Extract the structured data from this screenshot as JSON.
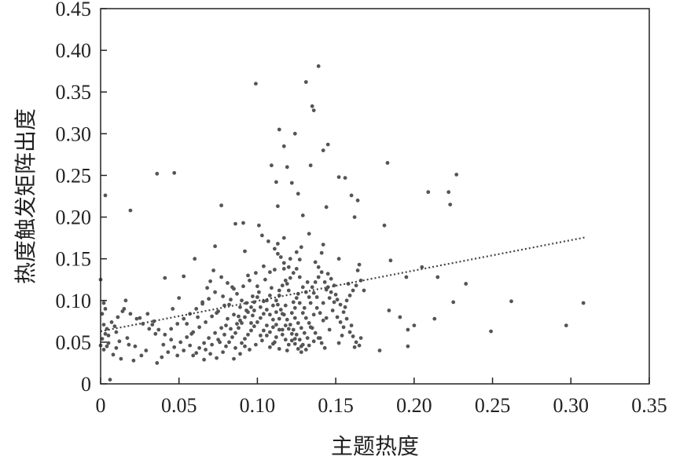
{
  "chart_data": {
    "type": "scatter",
    "title": "",
    "xlabel": "主题热度",
    "ylabel": "热度触发矩阵出度",
    "xlim": [
      0,
      0.35
    ],
    "ylim": [
      0,
      0.45
    ],
    "x_ticks": [
      "0",
      "0.05",
      "0.10",
      "0.15",
      "0.20",
      "0.25",
      "0.30",
      "0.35"
    ],
    "y_ticks": [
      "0",
      "0.05",
      "0.10",
      "0.15",
      "0.20",
      "0.25",
      "0.30",
      "0.35",
      "0.40",
      "0.45"
    ],
    "grid": false,
    "legend": "none",
    "point_color": "#555555",
    "trendline": {
      "style": "dotted",
      "x": [
        0,
        0.31
      ],
      "y": [
        0.063,
        0.176
      ]
    },
    "points": [
      [
        0.139,
        0.381
      ],
      [
        0.099,
        0.36
      ],
      [
        0.131,
        0.362
      ],
      [
        0.135,
        0.333
      ],
      [
        0.136,
        0.328
      ],
      [
        0.114,
        0.305
      ],
      [
        0.124,
        0.3
      ],
      [
        0.117,
        0.285
      ],
      [
        0.142,
        0.28
      ],
      [
        0.145,
        0.287
      ],
      [
        0.109,
        0.262
      ],
      [
        0.119,
        0.26
      ],
      [
        0.134,
        0.262
      ],
      [
        0.112,
        0.242
      ],
      [
        0.122,
        0.241
      ],
      [
        0.126,
        0.228
      ],
      [
        0.152,
        0.248
      ],
      [
        0.156,
        0.247
      ],
      [
        0.16,
        0.226
      ],
      [
        0.164,
        0.22
      ],
      [
        0.183,
        0.265
      ],
      [
        0.227,
        0.251
      ],
      [
        0.209,
        0.23
      ],
      [
        0.222,
        0.23
      ],
      [
        0.223,
        0.215
      ],
      [
        0.036,
        0.252
      ],
      [
        0.047,
        0.253
      ],
      [
        0.003,
        0.226
      ],
      [
        0.019,
        0.208
      ],
      [
        0.077,
        0.214
      ],
      [
        0.086,
        0.192
      ],
      [
        0.091,
        0.193
      ],
      [
        0.101,
        0.19
      ],
      [
        0.113,
        0.213
      ],
      [
        0.129,
        0.202
      ],
      [
        0.144,
        0.212
      ],
      [
        0.162,
        0.2
      ],
      [
        0.181,
        0.19
      ],
      [
        0.103,
        0.178
      ],
      [
        0.117,
        0.175
      ],
      [
        0.133,
        0.18
      ],
      [
        0.142,
        0.167
      ],
      [
        0.128,
        0.164
      ],
      [
        0.073,
        0.165
      ],
      [
        0.092,
        0.159
      ],
      [
        0.113,
        0.156
      ],
      [
        0.141,
        0.157
      ],
      [
        0.152,
        0.15
      ],
      [
        0.165,
        0.143
      ],
      [
        0.06,
        0.15
      ],
      [
        0.185,
        0.148
      ],
      [
        0.205,
        0.14
      ],
      [
        0.215,
        0.128
      ],
      [
        0.195,
        0.128
      ],
      [
        0.233,
        0.12
      ],
      [
        0.184,
        0.088
      ],
      [
        0.191,
        0.08
      ],
      [
        0.196,
        0.065
      ],
      [
        0.2,
        0.07
      ],
      [
        0.213,
        0.078
      ],
      [
        0.225,
        0.098
      ],
      [
        0.249,
        0.063
      ],
      [
        0.262,
        0.099
      ],
      [
        0.297,
        0.07
      ],
      [
        0.308,
        0.097
      ],
      [
        0.178,
        0.04
      ],
      [
        0.196,
        0.045
      ],
      [
        0.0,
        0.125
      ],
      [
        0.002,
        0.097
      ],
      [
        0.004,
        0.066
      ],
      [
        0.005,
        0.058
      ],
      [
        0.007,
        0.074
      ],
      [
        0.01,
        0.062
      ],
      [
        0.012,
        0.051
      ],
      [
        0.014,
        0.087
      ],
      [
        0.016,
        0.1
      ],
      [
        0.002,
        0.041
      ],
      [
        0.004,
        0.045
      ],
      [
        0.006,
        0.005
      ],
      [
        0.013,
        0.03
      ],
      [
        0.017,
        0.055
      ],
      [
        0.022,
        0.045
      ],
      [
        0.025,
        0.079
      ],
      [
        0.03,
        0.084
      ],
      [
        0.034,
        0.075
      ],
      [
        0.036,
        0.025
      ],
      [
        0.04,
        0.047
      ],
      [
        0.041,
        0.127
      ],
      [
        0.046,
        0.09
      ],
      [
        0.05,
        0.103
      ],
      [
        0.053,
        0.129
      ],
      [
        0.055,
        0.072
      ],
      [
        0.058,
        0.06
      ],
      [
        0.059,
        0.034
      ],
      [
        0.062,
        0.08
      ],
      [
        0.065,
        0.098
      ],
      [
        0.068,
        0.115
      ],
      [
        0.07,
        0.123
      ],
      [
        0.072,
        0.136
      ],
      [
        0.074,
        0.085
      ],
      [
        0.076,
        0.05
      ],
      [
        0.078,
        0.105
      ],
      [
        0.08,
        0.07
      ],
      [
        0.082,
        0.095
      ],
      [
        0.084,
        0.116
      ],
      [
        0.086,
        0.061
      ],
      [
        0.088,
        0.081
      ],
      [
        0.09,
        0.1
      ],
      [
        0.092,
        0.045
      ],
      [
        0.094,
        0.13
      ],
      [
        0.096,
        0.073
      ],
      [
        0.098,
        0.088
      ],
      [
        0.1,
        0.117
      ],
      [
        0.102,
        0.058
      ],
      [
        0.104,
        0.099
      ],
      [
        0.106,
        0.07
      ],
      [
        0.108,
        0.134
      ],
      [
        0.11,
        0.048
      ],
      [
        0.112,
        0.086
      ],
      [
        0.114,
        0.112
      ],
      [
        0.116,
        0.065
      ],
      [
        0.118,
        0.094
      ],
      [
        0.12,
        0.14
      ],
      [
        0.122,
        0.052
      ],
      [
        0.124,
        0.079
      ],
      [
        0.126,
        0.108
      ],
      [
        0.128,
        0.045
      ],
      [
        0.13,
        0.091
      ],
      [
        0.132,
        0.122
      ],
      [
        0.134,
        0.068
      ],
      [
        0.136,
        0.083
      ],
      [
        0.138,
        0.104
      ],
      [
        0.14,
        0.055
      ],
      [
        0.142,
        0.076
      ],
      [
        0.144,
        0.113
      ],
      [
        0.146,
        0.065
      ],
      [
        0.148,
        0.088
      ],
      [
        0.15,
        0.107
      ],
      [
        0.152,
        0.049
      ],
      [
        0.154,
        0.058
      ],
      [
        0.156,
        0.092
      ],
      [
        0.158,
        0.12
      ],
      [
        0.16,
        0.07
      ],
      [
        0.162,
        0.044
      ],
      [
        0.164,
        0.136
      ],
      [
        0.166,
        0.055
      ],
      [
        0.168,
        0.112
      ],
      [
        0.115,
        0.152
      ],
      [
        0.117,
        0.145
      ],
      [
        0.111,
        0.137
      ],
      [
        0.121,
        0.127
      ],
      [
        0.119,
        0.12
      ],
      [
        0.109,
        0.115
      ],
      [
        0.105,
        0.125
      ],
      [
        0.101,
        0.11
      ],
      [
        0.097,
        0.105
      ],
      [
        0.093,
        0.097
      ],
      [
        0.089,
        0.092
      ],
      [
        0.085,
        0.083
      ],
      [
        0.081,
        0.078
      ],
      [
        0.077,
        0.067
      ],
      [
        0.073,
        0.061
      ],
      [
        0.069,
        0.055
      ],
      [
        0.066,
        0.049
      ],
      [
        0.063,
        0.043
      ],
      [
        0.113,
        0.095
      ],
      [
        0.115,
        0.089
      ],
      [
        0.117,
        0.083
      ],
      [
        0.119,
        0.077
      ],
      [
        0.121,
        0.071
      ],
      [
        0.123,
        0.065
      ],
      [
        0.125,
        0.059
      ],
      [
        0.127,
        0.053
      ],
      [
        0.129,
        0.047
      ],
      [
        0.131,
        0.041
      ],
      [
        0.108,
        0.083
      ],
      [
        0.11,
        0.077
      ],
      [
        0.112,
        0.071
      ],
      [
        0.114,
        0.065
      ],
      [
        0.116,
        0.059
      ],
      [
        0.118,
        0.053
      ],
      [
        0.12,
        0.047
      ],
      [
        0.106,
        0.089
      ],
      [
        0.104,
        0.084
      ],
      [
        0.102,
        0.079
      ],
      [
        0.1,
        0.074
      ],
      [
        0.098,
        0.069
      ],
      [
        0.096,
        0.064
      ],
      [
        0.094,
        0.059
      ],
      [
        0.092,
        0.054
      ],
      [
        0.09,
        0.049
      ],
      [
        0.123,
        0.098
      ],
      [
        0.125,
        0.103
      ],
      [
        0.127,
        0.097
      ],
      [
        0.129,
        0.085
      ],
      [
        0.131,
        0.079
      ],
      [
        0.133,
        0.073
      ],
      [
        0.135,
        0.067
      ],
      [
        0.137,
        0.061
      ],
      [
        0.139,
        0.055
      ],
      [
        0.141,
        0.049
      ],
      [
        0.143,
        0.043
      ],
      [
        0.087,
        0.072
      ],
      [
        0.083,
        0.066
      ],
      [
        0.079,
        0.059
      ],
      [
        0.075,
        0.053
      ],
      [
        0.071,
        0.047
      ],
      [
        0.067,
        0.041
      ],
      [
        0.104,
        0.141
      ],
      [
        0.099,
        0.133
      ],
      [
        0.095,
        0.124
      ],
      [
        0.091,
        0.117
      ],
      [
        0.087,
        0.108
      ],
      [
        0.083,
        0.101
      ],
      [
        0.079,
        0.094
      ],
      [
        0.075,
        0.087
      ],
      [
        0.071,
        0.081
      ],
      [
        0.067,
        0.074
      ],
      [
        0.063,
        0.068
      ],
      [
        0.059,
        0.062
      ],
      [
        0.055,
        0.056
      ],
      [
        0.051,
        0.05
      ],
      [
        0.047,
        0.044
      ],
      [
        0.043,
        0.038
      ],
      [
        0.039,
        0.032
      ],
      [
        0.035,
        0.06
      ],
      [
        0.031,
        0.066
      ],
      [
        0.027,
        0.072
      ],
      [
        0.023,
        0.078
      ],
      [
        0.019,
        0.084
      ],
      [
        0.015,
        0.09
      ],
      [
        0.111,
        0.162
      ],
      [
        0.113,
        0.168
      ],
      [
        0.107,
        0.171
      ],
      [
        0.125,
        0.158
      ],
      [
        0.127,
        0.149
      ],
      [
        0.137,
        0.146
      ],
      [
        0.139,
        0.14
      ],
      [
        0.145,
        0.132
      ],
      [
        0.147,
        0.126
      ],
      [
        0.149,
        0.118
      ],
      [
        0.151,
        0.101
      ],
      [
        0.153,
        0.095
      ],
      [
        0.155,
        0.086
      ],
      [
        0.157,
        0.078
      ],
      [
        0.159,
        0.062
      ],
      [
        0.161,
        0.057
      ],
      [
        0.163,
        0.05
      ],
      [
        0.165,
        0.046
      ],
      [
        0.108,
        0.044
      ],
      [
        0.111,
        0.05
      ],
      [
        0.114,
        0.042
      ],
      [
        0.119,
        0.04
      ],
      [
        0.124,
        0.048
      ],
      [
        0.128,
        0.038
      ],
      [
        0.133,
        0.046
      ],
      [
        0.136,
        0.051
      ],
      [
        0.103,
        0.052
      ],
      [
        0.099,
        0.047
      ],
      [
        0.095,
        0.041
      ],
      [
        0.089,
        0.036
      ],
      [
        0.085,
        0.03
      ],
      [
        0.08,
        0.045
      ],
      [
        0.078,
        0.038
      ],
      [
        0.074,
        0.031
      ],
      [
        0.07,
        0.036
      ],
      [
        0.066,
        0.029
      ],
      [
        0.061,
        0.037
      ],
      [
        0.057,
        0.046
      ],
      [
        0.053,
        0.04
      ],
      [
        0.049,
        0.034
      ],
      [
        0.045,
        0.053
      ],
      [
        0.041,
        0.059
      ],
      [
        0.037,
        0.065
      ],
      [
        0.033,
        0.071
      ],
      [
        0.029,
        0.04
      ],
      [
        0.026,
        0.034
      ],
      [
        0.021,
        0.028
      ],
      [
        0.018,
        0.047
      ],
      [
        0.008,
        0.035
      ],
      [
        0.01,
        0.043
      ],
      [
        0.001,
        0.054
      ],
      [
        0.003,
        0.06
      ],
      [
        0.005,
        0.049
      ],
      [
        0.009,
        0.069
      ],
      [
        0.011,
        0.08
      ],
      [
        0.001,
        0.084
      ],
      [
        0.003,
        0.09
      ],
      [
        0.0,
        0.046
      ],
      [
        0.002,
        0.071
      ],
      [
        0.106,
        0.1
      ],
      [
        0.108,
        0.106
      ],
      [
        0.11,
        0.094
      ],
      [
        0.112,
        0.1
      ],
      [
        0.114,
        0.106
      ],
      [
        0.116,
        0.118
      ],
      [
        0.118,
        0.124
      ],
      [
        0.12,
        0.112
      ],
      [
        0.122,
        0.085
      ],
      [
        0.124,
        0.091
      ],
      [
        0.126,
        0.073
      ],
      [
        0.128,
        0.067
      ],
      [
        0.13,
        0.061
      ],
      [
        0.132,
        0.055
      ],
      [
        0.134,
        0.097
      ],
      [
        0.136,
        0.109
      ],
      [
        0.138,
        0.091
      ],
      [
        0.14,
        0.085
      ],
      [
        0.142,
        0.097
      ],
      [
        0.144,
        0.079
      ],
      [
        0.146,
        0.103
      ],
      [
        0.097,
        0.082
      ],
      [
        0.093,
        0.088
      ],
      [
        0.089,
        0.076
      ],
      [
        0.085,
        0.114
      ],
      [
        0.081,
        0.121
      ],
      [
        0.077,
        0.128
      ],
      [
        0.073,
        0.11
      ],
      [
        0.069,
        0.102
      ],
      [
        0.065,
        0.096
      ],
      [
        0.061,
        0.09
      ],
      [
        0.057,
        0.084
      ],
      [
        0.053,
        0.078
      ],
      [
        0.049,
        0.072
      ],
      [
        0.045,
        0.066
      ],
      [
        0.082,
        0.05
      ],
      [
        0.084,
        0.056
      ],
      [
        0.086,
        0.043
      ],
      [
        0.088,
        0.067
      ],
      [
        0.09,
        0.073
      ],
      [
        0.092,
        0.08
      ],
      [
        0.094,
        0.086
      ],
      [
        0.096,
        0.092
      ],
      [
        0.098,
        0.098
      ],
      [
        0.1,
        0.104
      ],
      [
        0.102,
        0.092
      ],
      [
        0.104,
        0.064
      ],
      [
        0.106,
        0.058
      ],
      [
        0.108,
        0.062
      ],
      [
        0.11,
        0.068
      ],
      [
        0.112,
        0.056
      ],
      [
        0.114,
        0.078
      ],
      [
        0.116,
        0.084
      ],
      [
        0.118,
        0.07
      ],
      [
        0.12,
        0.066
      ],
      [
        0.122,
        0.06
      ],
      [
        0.124,
        0.054
      ],
      [
        0.126,
        0.042
      ],
      [
        0.117,
        0.138
      ],
      [
        0.121,
        0.15
      ],
      [
        0.123,
        0.133
      ],
      [
        0.125,
        0.138
      ],
      [
        0.127,
        0.128
      ],
      [
        0.129,
        0.116
      ],
      [
        0.131,
        0.11
      ],
      [
        0.133,
        0.104
      ],
      [
        0.135,
        0.116
      ],
      [
        0.137,
        0.122
      ],
      [
        0.139,
        0.128
      ],
      [
        0.141,
        0.134
      ],
      [
        0.143,
        0.122
      ],
      [
        0.145,
        0.116
      ],
      [
        0.147,
        0.11
      ],
      [
        0.149,
        0.098
      ],
      [
        0.151,
        0.08
      ],
      [
        0.153,
        0.074
      ],
      [
        0.155,
        0.068
      ],
      [
        0.157,
        0.1
      ],
      [
        0.159,
        0.106
      ],
      [
        0.161,
        0.112
      ],
      [
        0.163,
        0.118
      ],
      [
        0.166,
        0.124
      ]
    ]
  }
}
